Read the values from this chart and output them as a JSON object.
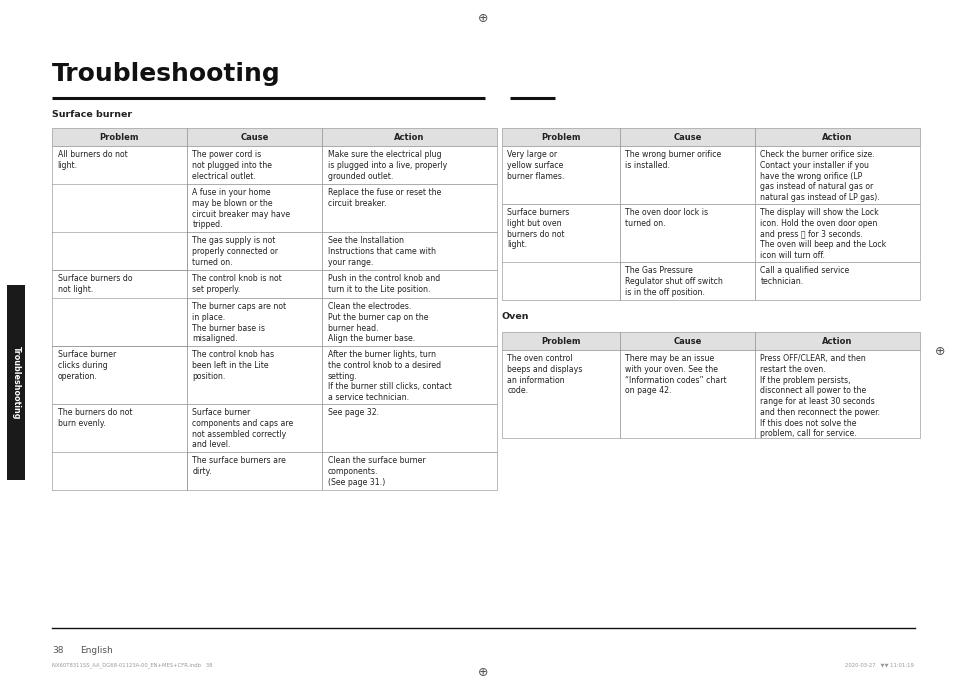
{
  "title": "Troubleshooting",
  "page_number": "38",
  "page_lang": "English",
  "background_color": "#ffffff",
  "text_color": "#222222",
  "header_bg": "#e0e0e0",
  "border_color": "#888888",
  "title_color": "#111111",
  "section1_label": "Surface burner",
  "section1_headers": [
    "Problem",
    "Cause",
    "Action"
  ],
  "section1_rows": [
    [
      "All burners do not\nlight.",
      "The power cord is\nnot plugged into the\nelectrical outlet.",
      "Make sure the electrical plug\nis plugged into a live, properly\ngrounded outlet."
    ],
    [
      "",
      "A fuse in your home\nmay be blown or the\ncircuit breaker may have\ntripped.",
      "Replace the fuse or reset the\ncircuit breaker."
    ],
    [
      "",
      "The gas supply is not\nproperly connected or\nturned on.",
      "See the Installation\nInstructions that came with\nyour range."
    ],
    [
      "Surface burners do\nnot light.",
      "The control knob is not\nset properly.",
      "Push in the control knob and\nturn it to the Lite position."
    ],
    [
      "",
      "The burner caps are not\nin place.\nThe burner base is\nmisaligned.",
      "Clean the electrodes.\nPut the burner cap on the\nburner head.\nAlign the burner base."
    ],
    [
      "Surface burner\nclicks during\noperation.",
      "The control knob has\nbeen left in the Lite\nposition.",
      "After the burner lights, turn\nthe control knob to a desired\nsetting.\nIf the burner still clicks, contact\na service technician."
    ],
    [
      "The burners do not\nburn evenly.",
      "Surface burner\ncomponents and caps are\nnot assembled correctly\nand level.",
      "See page 32."
    ],
    [
      "",
      "The surface burners are\ndirty.",
      "Clean the surface burner\ncomponents.\n(See page 31.)"
    ]
  ],
  "section2_headers": [
    "Problem",
    "Cause",
    "Action"
  ],
  "section2_rows": [
    [
      "Very large or\nyellow surface\nburner flames.",
      "The wrong burner orifice\nis installed.",
      "Check the burner orifice size.\nContact your installer if you\nhave the wrong orifice (LP\ngas instead of natural gas or\nnatural gas instead of LP gas)."
    ],
    [
      "Surface burners\nlight but oven\nburners do not\nlight.",
      "The oven door lock is\nturned on.",
      "The display will show the Lock\nicon. Hold the oven door open\nand press ⓡ for 3 seconds.\nThe oven will beep and the Lock\nicon will turn off."
    ],
    [
      "",
      "The Gas Pressure\nRegulator shut off switch\nis in the off position.",
      "Call a qualified service\ntechnician."
    ]
  ],
  "section3_label": "Oven",
  "section3_headers": [
    "Problem",
    "Cause",
    "Action"
  ],
  "section3_rows": [
    [
      "The oven control\nbeeps and displays\nan information\ncode.",
      "There may be an issue\nwith your oven. See the\n“Information codes” chart\non page 42.",
      "Press OFF/CLEAR, and then\nrestart the oven.\nIf the problem persists,\ndisconnect all power to the\nrange for at least 30 seconds\nand then reconnect the power.\nIf this does not solve the\nproblem, call for service."
    ]
  ],
  "sidebar_text": "Troubleshooting",
  "footer_text": "NX60T8311SS_AA_DG68-01123A-00_EN+MES+CFR.indb   38",
  "footer_date": "2020-03-27   ▼▼ 11:01:19"
}
